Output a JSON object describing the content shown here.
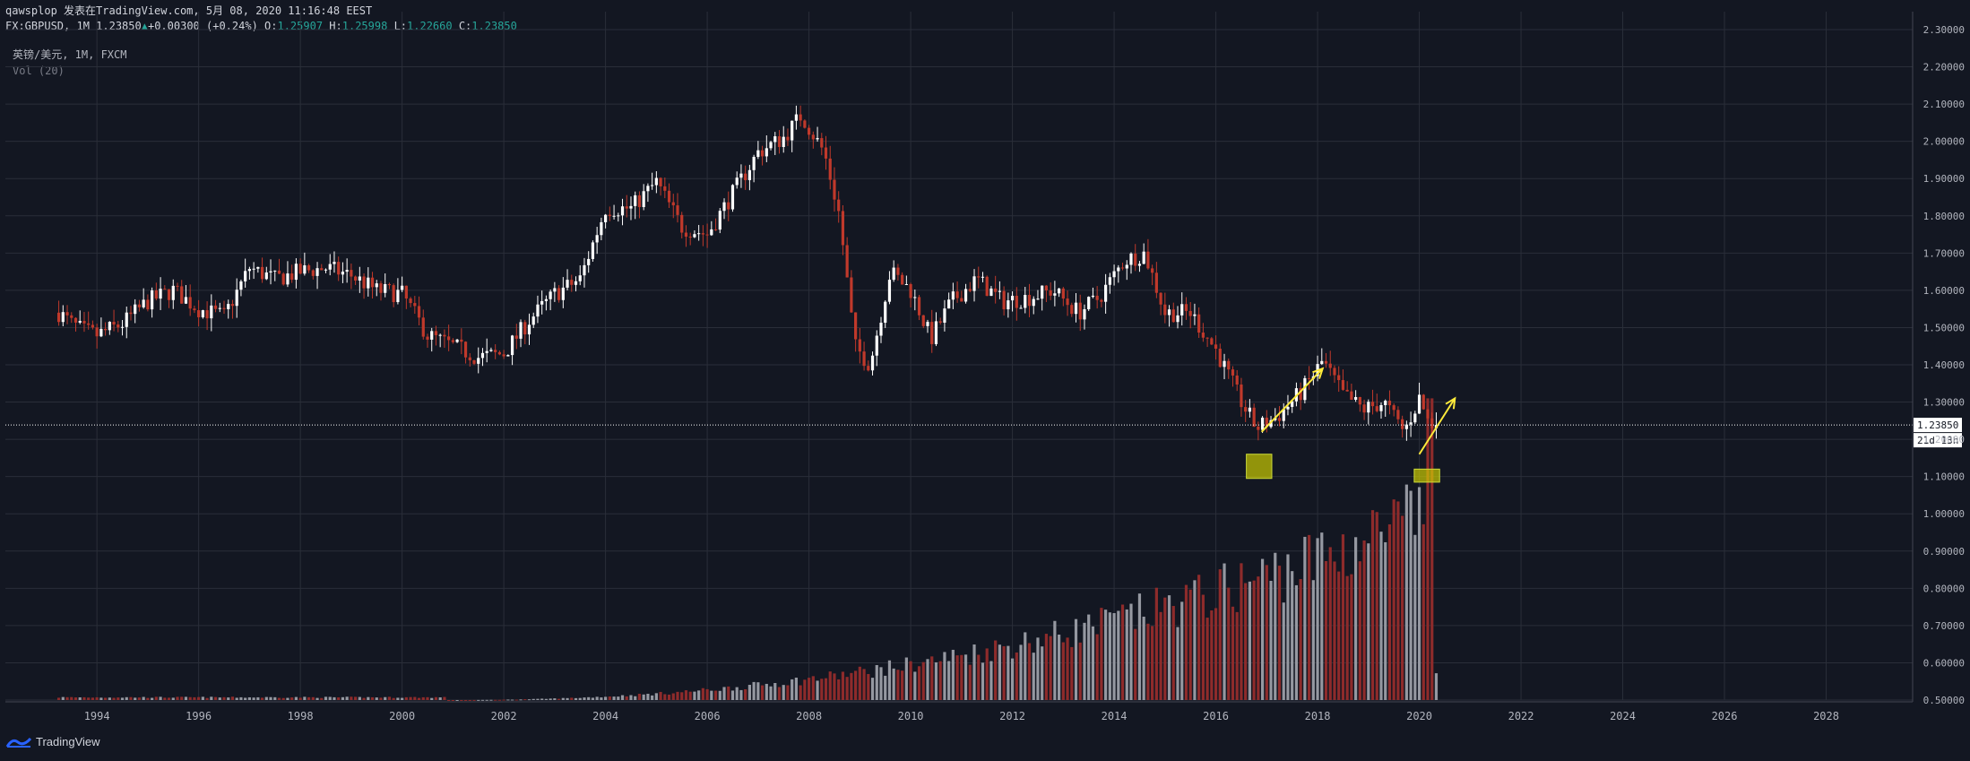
{
  "header": {
    "line1": "qawsplop 发表在TradingView.com, 5月 08, 2020 11:16:48 EEST",
    "symbol": "FX:GBPUSD, 1M",
    "last": "1.23850",
    "change": "+0.00300 (+0.24%)",
    "o_label": "O:",
    "o_value": "1.25907",
    "h_label": "H:",
    "h_value": "1.25998",
    "l_label": "L:",
    "l_value": "1.22660",
    "c_label": "C:",
    "c_value": "1.23850"
  },
  "legend": {
    "title": "英镑/美元, 1M, FXCM",
    "volume": "Vol (20)"
  },
  "footer": {
    "brand": "TradingView"
  },
  "colors": {
    "background": "#131722",
    "grid": "#2a2e39",
    "up": "#ffffff",
    "down": "#c0392b",
    "vol_up": "#9598a1",
    "vol_down": "#8e2b2b",
    "annotation": "#ffeb3b",
    "accent": "#2962ff"
  },
  "chart_data": {
    "type": "candlestick",
    "yaxis": {
      "ticks": [
        "2.30000",
        "2.20000",
        "2.10000",
        "2.00000",
        "1.90000",
        "1.80000",
        "1.70000",
        "1.60000",
        "1.50000",
        "1.40000",
        "1.30000",
        "1.20000",
        "1.10000",
        "1.00000",
        "0.90000",
        "0.80000",
        "0.70000",
        "0.60000",
        "0.50000"
      ],
      "ylim": [
        0.5,
        2.3
      ]
    },
    "xaxis": {
      "ticks": [
        "1994",
        "1996",
        "1998",
        "2000",
        "2002",
        "2004",
        "2006",
        "2008",
        "2010",
        "2012",
        "2014",
        "2016",
        "2018",
        "2020",
        "2022",
        "2024",
        "2026",
        "2028"
      ],
      "xlim": [
        1992.2,
        2029.7
      ]
    },
    "price_line": {
      "value": 1.2385,
      "label": "1.23850",
      "countdown": "21d 13h"
    },
    "price_path": [
      [
        1993.25,
        1.54
      ],
      [
        1993.5,
        1.51
      ],
      [
        1993.75,
        1.49
      ],
      [
        1994.0,
        1.48
      ],
      [
        1994.5,
        1.51
      ],
      [
        1995.0,
        1.57
      ],
      [
        1995.5,
        1.6
      ],
      [
        1996.0,
        1.55
      ],
      [
        1996.5,
        1.53
      ],
      [
        1997.0,
        1.66
      ],
      [
        1997.5,
        1.63
      ],
      [
        1998.0,
        1.65
      ],
      [
        1998.5,
        1.66
      ],
      [
        1999.0,
        1.64
      ],
      [
        1999.5,
        1.6
      ],
      [
        2000.0,
        1.59
      ],
      [
        2000.5,
        1.48
      ],
      [
        2001.0,
        1.45
      ],
      [
        2001.5,
        1.42
      ],
      [
        2002.0,
        1.43
      ],
      [
        2002.5,
        1.52
      ],
      [
        2003.0,
        1.59
      ],
      [
        2003.5,
        1.63
      ],
      [
        2004.0,
        1.82
      ],
      [
        2004.5,
        1.82
      ],
      [
        2005.0,
        1.89
      ],
      [
        2005.5,
        1.77
      ],
      [
        2006.0,
        1.75
      ],
      [
        2006.5,
        1.86
      ],
      [
        2007.0,
        1.97
      ],
      [
        2007.5,
        2.01
      ],
      [
        2007.85,
        2.07
      ],
      [
        2008.3,
        1.97
      ],
      [
        2008.6,
        1.8
      ],
      [
        2008.9,
        1.45
      ],
      [
        2009.2,
        1.4
      ],
      [
        2009.6,
        1.65
      ],
      [
        2010.0,
        1.6
      ],
      [
        2010.4,
        1.47
      ],
      [
        2010.8,
        1.57
      ],
      [
        2011.3,
        1.63
      ],
      [
        2011.8,
        1.57
      ],
      [
        2012.3,
        1.58
      ],
      [
        2012.8,
        1.6
      ],
      [
        2013.3,
        1.54
      ],
      [
        2013.7,
        1.58
      ],
      [
        2014.2,
        1.68
      ],
      [
        2014.6,
        1.7
      ],
      [
        2015.0,
        1.54
      ],
      [
        2015.5,
        1.54
      ],
      [
        2016.0,
        1.44
      ],
      [
        2016.5,
        1.3
      ],
      [
        2016.8,
        1.23
      ],
      [
        2017.2,
        1.26
      ],
      [
        2017.7,
        1.33
      ],
      [
        2018.1,
        1.41
      ],
      [
        2018.5,
        1.32
      ],
      [
        2018.9,
        1.28
      ],
      [
        2019.3,
        1.3
      ],
      [
        2019.7,
        1.22
      ],
      [
        2020.0,
        1.31
      ],
      [
        2020.2,
        1.24
      ],
      [
        2020.35,
        1.2385
      ]
    ],
    "annotations": [
      {
        "kind": "arrow",
        "from": [
          2016.9,
          1.22
        ],
        "to": [
          2018.1,
          1.39
        ]
      },
      {
        "kind": "arrow",
        "from": [
          2020.0,
          1.16
        ],
        "to": [
          2020.7,
          1.31
        ]
      },
      {
        "kind": "box",
        "x": [
          2016.6,
          2017.1
        ],
        "y": [
          1.095,
          1.16
        ]
      },
      {
        "kind": "box",
        "x": [
          2019.9,
          2020.4
        ],
        "y": [
          1.085,
          1.12
        ]
      }
    ],
    "volume_note": "relative volume bars rise from near zero in 1993 to peak in March 2020"
  }
}
